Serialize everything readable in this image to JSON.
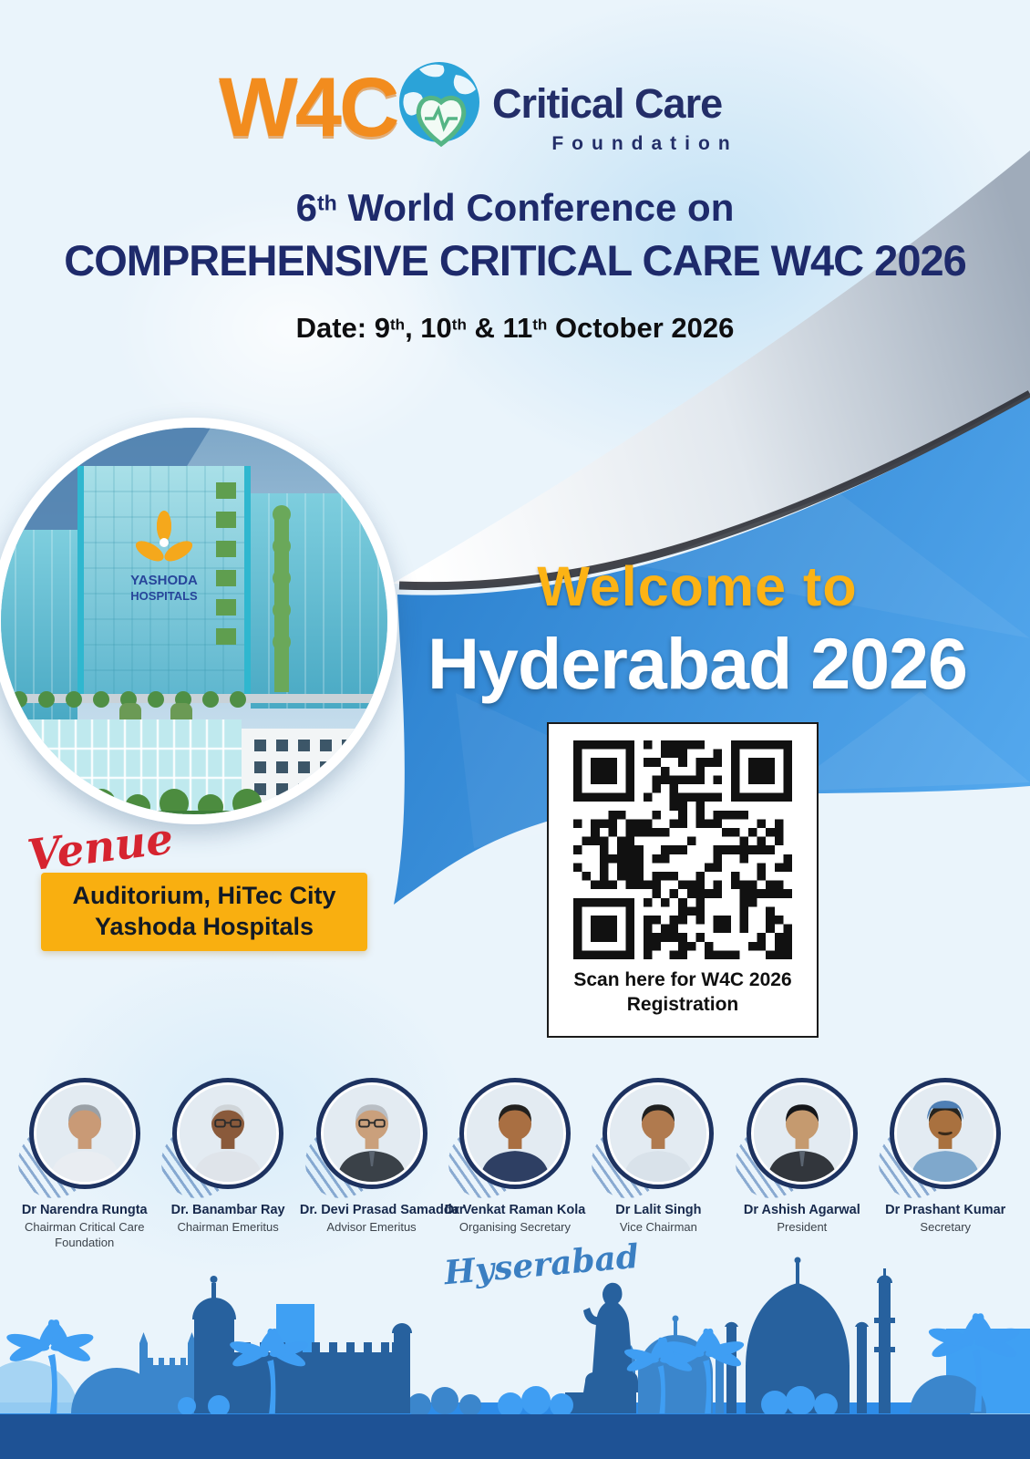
{
  "brand": {
    "w4c": "W4C",
    "org_line1": "Critical Care",
    "org_line2": "Foundation",
    "globe_icon": "globe-heart-icon"
  },
  "conference": {
    "l1a": "6",
    "l1b": "th",
    "l1c": " World Conference on",
    "line2": "COMPREHENSIVE CRITICAL CARE W4C 2026",
    "date": {
      "p1": "Date: 9",
      "s1": "th",
      "p2": ", 10",
      "s2": "th",
      "p3": " & 11",
      "s3": "th",
      "p4": " October 2026"
    }
  },
  "welcome": {
    "line1": "Welcome to",
    "line2": "Hyderabad 2026"
  },
  "hospital_photo": {
    "logo_line1": "YASHODA",
    "logo_line2": "HOSPITALS",
    "flower_icon": "yashoda-flower-icon"
  },
  "venue": {
    "script": "Venue",
    "line1": "Auditorium, HiTec City",
    "line2": "Yashoda Hospitals"
  },
  "qr": {
    "icon": "qr-code",
    "caption_line1": "Scan here for W4C 2026",
    "caption_line2": "Registration"
  },
  "advisors": [
    {
      "name": "Dr Narendra Rungta",
      "role": "Chairman Critical Care Foundation"
    },
    {
      "name": "Dr. Banambar Ray",
      "role": "Chairman Emeritus"
    },
    {
      "name": "Dr. Devi Prasad Samaddar",
      "role": "Advisor Emeritus"
    },
    {
      "name": "Dr Venkat Raman Kola",
      "role": "Organising Secretary"
    },
    {
      "name": "Dr Lalit Singh",
      "role": "Vice Chairman"
    },
    {
      "name": "Dr Ashish Agarwal",
      "role": "President"
    },
    {
      "name": "Dr Prashant Kumar",
      "role": "Secretary"
    }
  ],
  "skyline": {
    "script": "Hyserabad"
  },
  "colors": {
    "title_navy": "#1e2a6b",
    "w4c_orange": "#f28c1e",
    "welcome_yellow": "#fcb315",
    "band_blue": "#3e93df",
    "venue_yellow": "#f9af10",
    "venue_red": "#d62430",
    "footer_dark": "#1e5295",
    "footer_bright": "#2e8ce8",
    "skyline_dark": "#27619e",
    "skyline_mid": "#3b86cc",
    "skyline_bright": "#3f9ef3"
  }
}
